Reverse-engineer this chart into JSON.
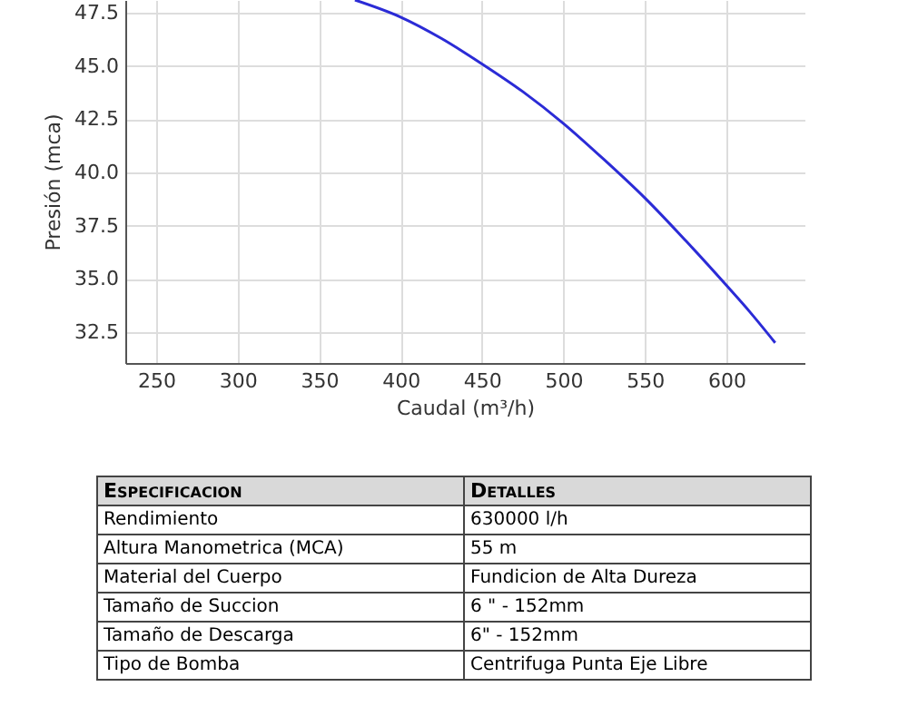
{
  "chart_data": [
    {
      "type": "line",
      "xlabel": "Caudal (m³/h)",
      "ylabel": "Presión (mca)",
      "series": [
        {
          "color": "#2b2bd6",
          "x": [
            372,
            400,
            425,
            450,
            475,
            500,
            525,
            550,
            575,
            600,
            615,
            630
          ],
          "values": [
            48.1,
            47.3,
            46.3,
            45.1,
            43.8,
            42.3,
            40.6,
            38.8,
            36.8,
            34.7,
            33.4,
            32.0
          ]
        }
      ],
      "xlim": [
        231,
        648
      ],
      "xticks": [
        250,
        300,
        350,
        400,
        450,
        500,
        550,
        600
      ],
      "ylim": [
        31.05,
        48.1
      ],
      "yticks": [
        32.5,
        {
          "value": 35,
          "label": "35.0"
        },
        37.5,
        {
          "value": 40,
          "label": "40.0"
        },
        42.5,
        {
          "value": 45,
          "label": "45.0"
        },
        47.5
      ],
      "grid": true,
      "marker": "none",
      "line_style": "solid"
    },
    {
      "type": "other",
      "annotations": [
        "Especificacion",
        "Detalles",
        "Rendimiento",
        "630000 l/h",
        "Altura Manometrica (MCA)",
        "55 m",
        "Material del Cuerpo",
        "Fundicion de Alta Dureza",
        "Tamaño de Succion",
        "6 \" - 152mm",
        "Tamaño de Descarga",
        "6\" - 152mm",
        "Tipo de Bomba",
        "Centrifuga Punta Eje Libre"
      ]
    }
  ]
}
